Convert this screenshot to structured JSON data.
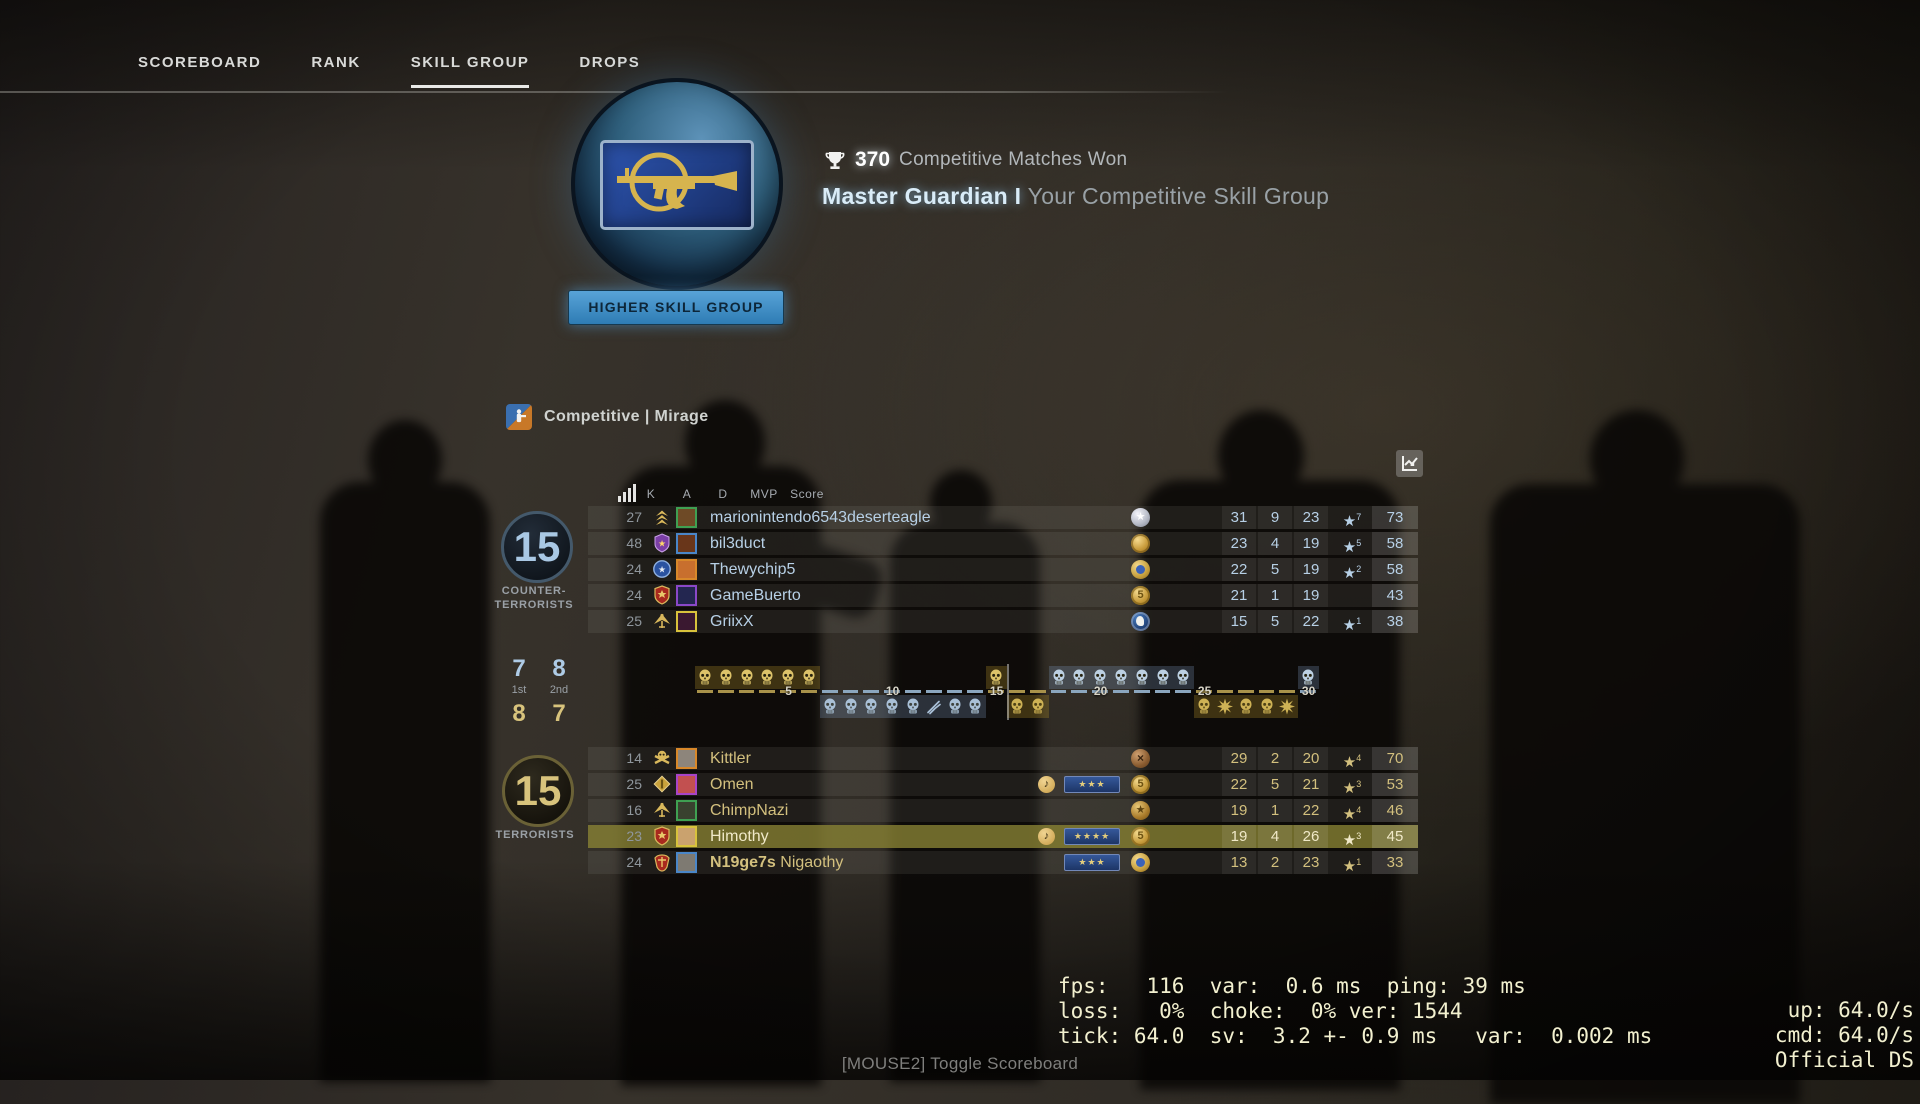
{
  "colors": {
    "ct_text": "#b7d0e6",
    "t_text": "#d3c07e",
    "highlight_row": "#8a8434",
    "button_blue": "#3f8fc9",
    "netgraph_text": "#f2f0cf"
  },
  "nav": {
    "tabs": [
      {
        "label": "SCOREBOARD",
        "active": false
      },
      {
        "label": "RANK",
        "active": false
      },
      {
        "label": "SKILL GROUP",
        "active": true
      },
      {
        "label": "DROPS",
        "active": false
      }
    ]
  },
  "skill_panel": {
    "matches_won": "370",
    "matches_won_label": "Competitive Matches Won",
    "skill_group": "Master Guardian I",
    "skill_group_suffix": "Your Competitive Skill Group",
    "button_label": "HIGHER SKILL GROUP"
  },
  "match_header": {
    "mode_label": "Competitive | Mirage"
  },
  "scoreboard": {
    "columns": {
      "k": "K",
      "a": "A",
      "d": "D",
      "mvp": "MVP",
      "score": "Score"
    },
    "ct": {
      "score": "15",
      "label": [
        "COUNTER-",
        "TERRORISTS"
      ],
      "players": [
        {
          "ping": "27",
          "name": "marionintendo6543deserteagle",
          "emblem": "chevrons-gold",
          "avatar_border": "#3fa052",
          "avatar_fill": "#6e4a26",
          "music": false,
          "nova": 0,
          "medal": "burst-silver",
          "k": "31",
          "a": "9",
          "d": "23",
          "mvp": "7",
          "score": "73",
          "highlight": false
        },
        {
          "ping": "48",
          "name": "bil3duct",
          "emblem": "shield-purple",
          "avatar_border": "#4a86c8",
          "avatar_fill": "#69361a",
          "music": false,
          "nova": 0,
          "medal": "medal-gold",
          "k": "23",
          "a": "4",
          "d": "19",
          "mvp": "5",
          "score": "58",
          "highlight": false
        },
        {
          "ping": "24",
          "name": "Thewychip5",
          "emblem": "circle-blue",
          "avatar_border": "#d8882a",
          "avatar_fill": "#c86f2e",
          "music": false,
          "nova": 0,
          "medal": "star-blue",
          "k": "22",
          "a": "5",
          "d": "19",
          "mvp": "2",
          "score": "58",
          "highlight": false
        },
        {
          "ping": "24",
          "name": "GameBuerto",
          "emblem": "shield-red",
          "avatar_border": "#8a48c8",
          "avatar_fill": "#232650",
          "music": false,
          "nova": 0,
          "medal": "coin5",
          "k": "21",
          "a": "1",
          "d": "19",
          "mvp": "",
          "score": "43",
          "highlight": false
        },
        {
          "ping": "25",
          "name": "GriixX",
          "emblem": "eagle-gold",
          "avatar_border": "#d8c23c",
          "avatar_fill": "#3a1830",
          "music": false,
          "nova": 0,
          "medal": "chicken",
          "k": "15",
          "a": "5",
          "d": "22",
          "mvp": "1",
          "score": "38",
          "highlight": false
        }
      ]
    },
    "t": {
      "score": "15",
      "label": [
        "TERRORISTS"
      ],
      "players": [
        {
          "ping": "14",
          "name": "Kittler",
          "emblem": "skullx-gold",
          "avatar_border": "#d8882a",
          "avatar_fill": "#8d857b",
          "music": false,
          "nova": 0,
          "medal": "bronze-cross",
          "k": "29",
          "a": "2",
          "d": "20",
          "mvp": "4",
          "score": "70",
          "highlight": false
        },
        {
          "ping": "25",
          "name": "Omen",
          "emblem": "diamond-gold",
          "avatar_border": "#a844c8",
          "avatar_fill": "#c25050",
          "music": true,
          "nova": 3,
          "medal": "coin5",
          "k": "22",
          "a": "5",
          "d": "21",
          "mvp": "3",
          "score": "53",
          "highlight": false
        },
        {
          "ping": "16",
          "name": "ChimpNazi",
          "emblem": "eagle-gold",
          "avatar_border": "#3fa052",
          "avatar_fill": "#39412f",
          "music": false,
          "nova": 0,
          "medal": "eagle-medal",
          "k": "19",
          "a": "1",
          "d": "22",
          "mvp": "4",
          "score": "46",
          "highlight": false
        },
        {
          "ping": "23",
          "name": "Himothy",
          "emblem": "shield-red",
          "avatar_border": "#d8c23c",
          "avatar_fill": "#caa26e",
          "music": true,
          "nova": 4,
          "medal": "coin5",
          "k": "19",
          "a": "4",
          "d": "26",
          "mvp": "3",
          "score": "45",
          "highlight": true
        },
        {
          "ping": "24",
          "name_bold": "N19ge7s",
          "name": " Nigaothy",
          "emblem": "crest-red",
          "avatar_border": "#4a86c8",
          "avatar_fill": "#7e7a72",
          "music": false,
          "nova": 3,
          "medal": "star-blue",
          "k": "13",
          "a": "2",
          "d": "23",
          "mvp": "1",
          "score": "33",
          "highlight": false
        }
      ]
    },
    "halves": {
      "labels": [
        "1st",
        "2nd"
      ],
      "ct": [
        "7",
        "8"
      ],
      "t": [
        "8",
        "7"
      ]
    }
  },
  "round_history": {
    "ticks": [
      "5",
      "10",
      "15",
      "20",
      "25",
      "30"
    ],
    "rounds": [
      {
        "round": 1,
        "winner_row": "top",
        "side_color": "gold",
        "icon": "skull"
      },
      {
        "round": 2,
        "winner_row": "top",
        "side_color": "gold",
        "icon": "skull"
      },
      {
        "round": 3,
        "winner_row": "top",
        "side_color": "gold",
        "icon": "skull"
      },
      {
        "round": 4,
        "winner_row": "top",
        "side_color": "gold",
        "icon": "skull"
      },
      {
        "round": 5,
        "winner_row": "top",
        "side_color": "gold",
        "icon": "skull"
      },
      {
        "round": 6,
        "winner_row": "top",
        "side_color": "gold",
        "icon": "skull"
      },
      {
        "round": 7,
        "winner_row": "bot",
        "side_color": "blue",
        "icon": "skull"
      },
      {
        "round": 8,
        "winner_row": "bot",
        "side_color": "blue",
        "icon": "skull"
      },
      {
        "round": 9,
        "winner_row": "bot",
        "side_color": "blue",
        "icon": "skull"
      },
      {
        "round": 10,
        "winner_row": "bot",
        "side_color": "blue",
        "icon": "skull"
      },
      {
        "round": 11,
        "winner_row": "bot",
        "side_color": "blue",
        "icon": "skull"
      },
      {
        "round": 12,
        "winner_row": "bot",
        "side_color": "blue",
        "icon": "defuse"
      },
      {
        "round": 13,
        "winner_row": "bot",
        "side_color": "blue",
        "icon": "skull"
      },
      {
        "round": 14,
        "winner_row": "bot",
        "side_color": "blue",
        "icon": "skull"
      },
      {
        "round": 15,
        "winner_row": "top",
        "side_color": "gold",
        "icon": "skull"
      },
      {
        "round": 16,
        "winner_row": "bot",
        "side_color": "gold",
        "icon": "skull"
      },
      {
        "round": 17,
        "winner_row": "bot",
        "side_color": "gold",
        "icon": "skull"
      },
      {
        "round": 18,
        "winner_row": "top",
        "side_color": "blue",
        "icon": "skull"
      },
      {
        "round": 19,
        "winner_row": "top",
        "side_color": "blue",
        "icon": "skull"
      },
      {
        "round": 20,
        "winner_row": "top",
        "side_color": "blue",
        "icon": "skull"
      },
      {
        "round": 21,
        "winner_row": "top",
        "side_color": "blue",
        "icon": "skull"
      },
      {
        "round": 22,
        "winner_row": "top",
        "side_color": "blue",
        "icon": "skull"
      },
      {
        "round": 23,
        "winner_row": "top",
        "side_color": "blue",
        "icon": "skull"
      },
      {
        "round": 24,
        "winner_row": "top",
        "side_color": "blue",
        "icon": "skull"
      },
      {
        "round": 25,
        "winner_row": "bot",
        "side_color": "gold",
        "icon": "skull"
      },
      {
        "round": 26,
        "winner_row": "bot",
        "side_color": "gold",
        "icon": "bomb"
      },
      {
        "round": 27,
        "winner_row": "bot",
        "side_color": "gold",
        "icon": "skull"
      },
      {
        "round": 28,
        "winner_row": "bot",
        "side_color": "gold",
        "icon": "skull"
      },
      {
        "round": 29,
        "winner_row": "bot",
        "side_color": "gold",
        "icon": "bomb"
      },
      {
        "round": 30,
        "winner_row": "top",
        "side_color": "blue",
        "icon": "skull"
      }
    ]
  },
  "netgraph": {
    "lines": [
      {
        "left": "fps:   116  var:  0.6 ms  ping: 39 ms",
        "right": "up: 64.0/s"
      },
      {
        "left": "loss:   0%  choke:  0% ver: 1544",
        "right": "cmd: 64.0/s"
      },
      {
        "left": "tick: 64.0  sv:  3.2 +- 0.9 ms   var:  0.002 ms",
        "right": "Official DS"
      }
    ]
  },
  "footer": {
    "hint": "[MOUSE2] Toggle Scoreboard"
  }
}
